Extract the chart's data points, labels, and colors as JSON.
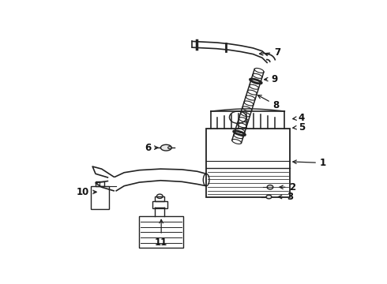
{
  "bg_color": "#ffffff",
  "line_color": "#222222",
  "label_color": "#111111",
  "fig_w": 4.9,
  "fig_h": 3.6,
  "dpi": 100
}
